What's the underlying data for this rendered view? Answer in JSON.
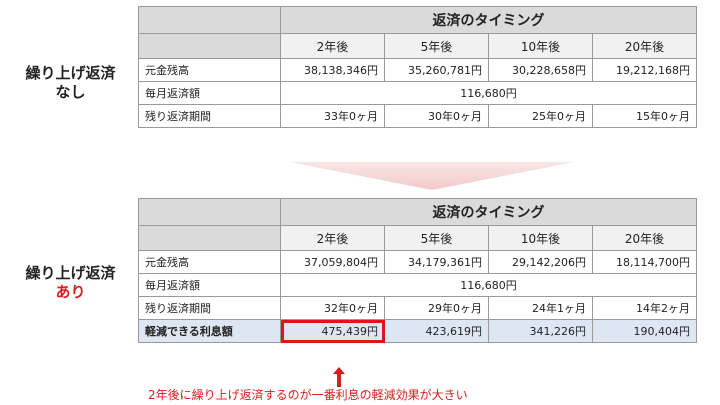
{
  "top": {
    "side_label_line1": "繰り上げ返済",
    "side_label_line2": "なし",
    "header": "返済のタイミング",
    "columns": [
      "2年後",
      "5年後",
      "10年後",
      "20年後"
    ],
    "rows": {
      "principal": {
        "label": "元金残高",
        "values": [
          "38,138,346円",
          "35,260,781円",
          "30,228,658円",
          "19,212,168円"
        ]
      },
      "monthly": {
        "label": "毎月返済額",
        "value": "116,680円"
      },
      "remaining": {
        "label": "残り返済期間",
        "values": [
          "33年0ヶ月",
          "30年0ヶ月",
          "25年0ヶ月",
          "15年0ヶ月"
        ]
      }
    }
  },
  "bottom": {
    "side_label_line1": "繰り上げ返済",
    "side_label_line2": "あり",
    "header": "返済のタイミング",
    "columns": [
      "2年後",
      "5年後",
      "10年後",
      "20年後"
    ],
    "rows": {
      "principal": {
        "label": "元金残高",
        "values": [
          "37,059,804円",
          "34,179,361円",
          "29,142,206円",
          "18,114,700円"
        ]
      },
      "monthly": {
        "label": "毎月返済額",
        "value": "116,680円"
      },
      "remaining": {
        "label": "残り返済期間",
        "values": [
          "32年0ヶ月",
          "29年0ヶ月",
          "24年1ヶ月",
          "14年2ヶ月"
        ]
      },
      "savings": {
        "label": "軽減できる利息額",
        "values": [
          "475,439円",
          "423,619円",
          "341,226円",
          "190,404円"
        ]
      }
    }
  },
  "note": "2年後に繰り上げ返済するのが一番利息の軽減効果が大きい",
  "colors": {
    "accent_red": "#d81e1e",
    "highlight_row": "#dde6f2",
    "header_gray": "#dadada",
    "chevron": "#f6dcdc"
  }
}
